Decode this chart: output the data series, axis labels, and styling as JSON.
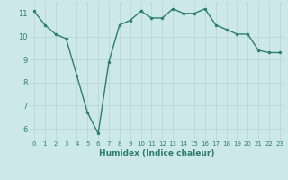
{
  "x": [
    0,
    1,
    2,
    3,
    4,
    5,
    6,
    7,
    8,
    9,
    10,
    11,
    12,
    13,
    14,
    15,
    16,
    17,
    18,
    19,
    20,
    21,
    22,
    23
  ],
  "y": [
    11.1,
    10.5,
    10.1,
    9.9,
    8.3,
    6.7,
    5.8,
    8.9,
    10.5,
    10.7,
    11.1,
    10.8,
    10.8,
    11.2,
    11.0,
    11.0,
    11.2,
    10.5,
    10.3,
    10.1,
    10.1,
    9.4,
    9.3,
    9.3
  ],
  "xlabel": "Humidex (Indice chaleur)",
  "ylim": [
    5.5,
    11.5
  ],
  "xlim": [
    -0.5,
    23.5
  ],
  "yticks": [
    6,
    7,
    8,
    9,
    10,
    11
  ],
  "xticks": [
    0,
    1,
    2,
    3,
    4,
    5,
    6,
    7,
    8,
    9,
    10,
    11,
    12,
    13,
    14,
    15,
    16,
    17,
    18,
    19,
    20,
    21,
    22,
    23
  ],
  "line_color": "#2e7d6e",
  "marker_color": "#2e7d6e",
  "bg_color": "#cce8e8",
  "grid_color": "#b8d8d8",
  "tick_color": "#2e7d6e",
  "xlabel_fontsize": 6.5,
  "tick_fontsize_x": 5.0,
  "tick_fontsize_y": 6.0,
  "linewidth": 1.0,
  "markersize": 2.0
}
